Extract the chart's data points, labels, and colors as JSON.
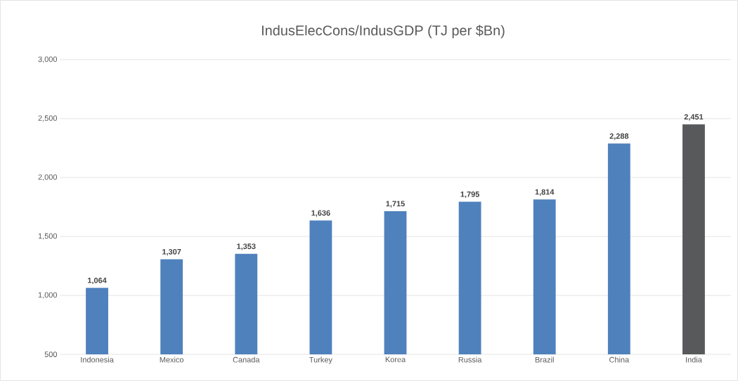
{
  "chart_data": {
    "type": "bar",
    "title": "IndusElecCons/IndusGDP (TJ per $Bn)",
    "categories": [
      "Indonesia",
      "Mexico",
      "Canada",
      "Turkey",
      "Korea",
      "Russia",
      "Brazil",
      "China",
      "India"
    ],
    "values": [
      1064,
      1307,
      1353,
      1636,
      1715,
      1795,
      1814,
      2288,
      2451
    ],
    "value_labels": [
      "1,064",
      "1,307",
      "1,353",
      "1,636",
      "1,715",
      "1,795",
      "1,814",
      "2,288",
      "2,451"
    ],
    "colors": [
      "#4f81bd",
      "#4f81bd",
      "#4f81bd",
      "#4f81bd",
      "#4f81bd",
      "#4f81bd",
      "#4f81bd",
      "#4f81bd",
      "#58595b"
    ],
    "ylim": [
      500,
      3000
    ],
    "yticks": [
      {
        "value": 500,
        "label": "500"
      },
      {
        "value": 1000,
        "label": "1,000"
      },
      {
        "value": 1500,
        "label": "1,500"
      },
      {
        "value": 2000,
        "label": "2,000"
      },
      {
        "value": 2500,
        "label": "2,500"
      },
      {
        "value": 3000,
        "label": "3,000"
      }
    ],
    "grid": "y"
  }
}
